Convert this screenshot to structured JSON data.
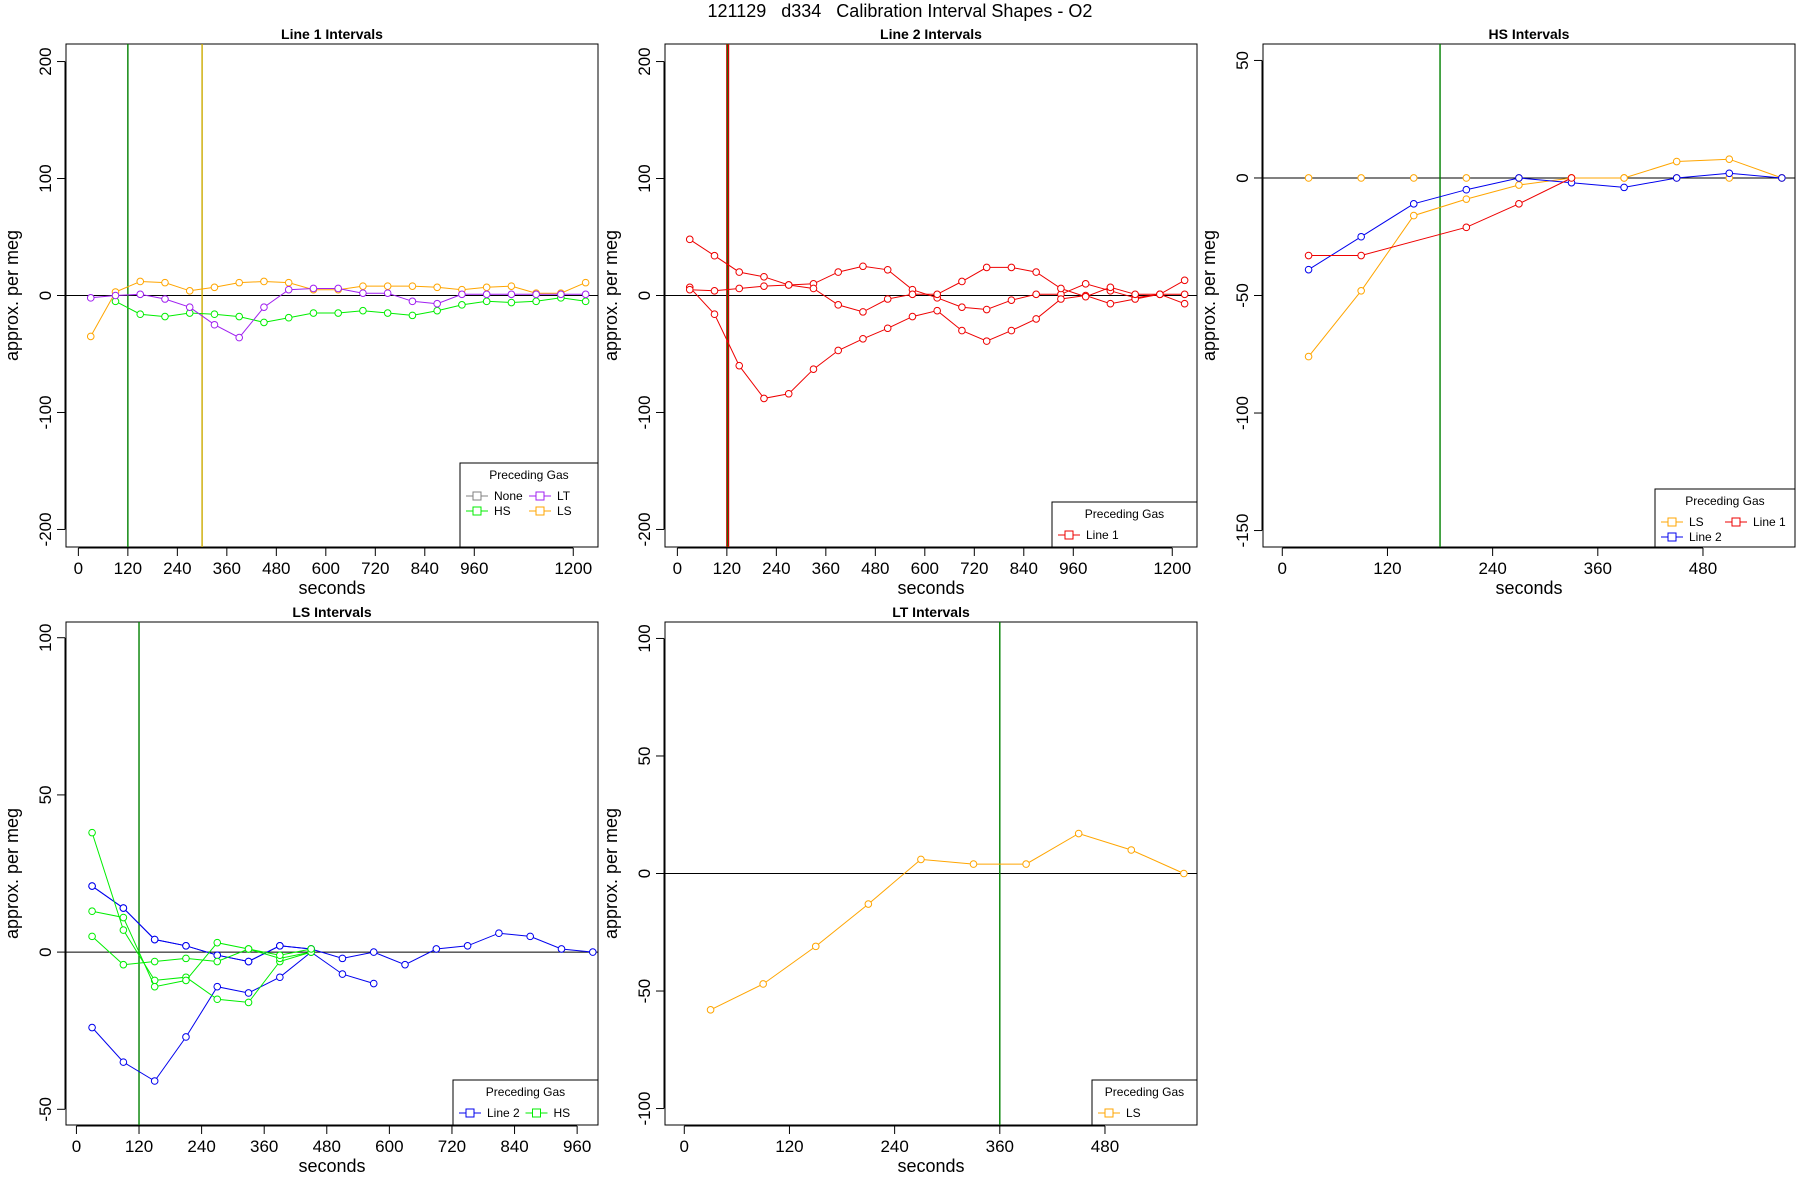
{
  "title": "121129   d334   Calibration Interval Shapes - O2",
  "colors": {
    "None": "#808080",
    "HS": "#00ee00",
    "LT": "#a020f0",
    "LS": "#ffa500",
    "Line 1": "#ee0000",
    "Line 2": "#0000ee",
    "vline_green": "#008000",
    "vline_orange": "#ccaa00",
    "vline_red": "#cc0000"
  },
  "chart_data": [
    {
      "type": "line",
      "title": "Line 1 Intervals",
      "xlabel": "seconds",
      "ylabel": "approx. per meg",
      "xlim": [
        -30,
        1260
      ],
      "ylim": [
        -215,
        215
      ],
      "xticks": [
        0,
        120,
        240,
        360,
        480,
        600,
        720,
        840,
        960,
        1200
      ],
      "yticks": [
        -200,
        -100,
        0,
        100,
        200
      ],
      "vlines": [
        {
          "x": 120,
          "color": "vline_green"
        },
        {
          "x": 300,
          "color": "vline_orange"
        }
      ],
      "legend": {
        "title": "Preceding Gas",
        "position": "bottom-right",
        "rows": [
          [
            "None",
            "LT"
          ],
          [
            "HS",
            "LS"
          ]
        ],
        "ncol": 2
      },
      "series": [
        {
          "name": "LS",
          "x": [
            30,
            90,
            150,
            210,
            270,
            330,
            390,
            450,
            510,
            570,
            630,
            690,
            750,
            810,
            870,
            930,
            990,
            1050,
            1110,
            1170,
            1230
          ],
          "y": [
            -35,
            3,
            12,
            11,
            4,
            7,
            11,
            12,
            11,
            5,
            5,
            8,
            8,
            8,
            7,
            5,
            7,
            8,
            2,
            2,
            11
          ]
        },
        {
          "name": "HS",
          "x": [
            90,
            150,
            210,
            270,
            330,
            390,
            450,
            510,
            570,
            630,
            690,
            750,
            810,
            870,
            930,
            990,
            1050,
            1110,
            1170,
            1230
          ],
          "y": [
            -5,
            -16,
            -18,
            -15,
            -16,
            -18,
            -23,
            -19,
            -15,
            -15,
            -13,
            -15,
            -17,
            -13,
            -8,
            -5,
            -6,
            -5,
            -2,
            -5
          ]
        },
        {
          "name": "LT",
          "x": [
            30,
            90,
            150,
            210,
            270,
            330,
            390,
            450,
            510,
            570,
            630,
            690,
            750,
            810,
            870,
            930,
            990,
            1050,
            1110,
            1170,
            1230
          ],
          "y": [
            -2,
            0,
            1,
            -3,
            -10,
            -25,
            -36,
            -10,
            5,
            6,
            6,
            2,
            2,
            -5,
            -7,
            1,
            1,
            1,
            1,
            1,
            1
          ]
        }
      ]
    },
    {
      "type": "line",
      "title": "Line 2 Intervals",
      "xlabel": "seconds",
      "ylabel": "approx. per meg",
      "xlim": [
        -30,
        1260
      ],
      "ylim": [
        -215,
        215
      ],
      "xticks": [
        0,
        120,
        240,
        360,
        480,
        600,
        720,
        840,
        960,
        1200
      ],
      "yticks": [
        -200,
        -100,
        0,
        100,
        200
      ],
      "vlines": [
        {
          "x": 120,
          "color": "vline_red"
        },
        {
          "x": 122,
          "color": "vline_green"
        },
        {
          "x": 124,
          "color": "vline_red"
        }
      ],
      "legend": {
        "title": "Preceding Gas",
        "position": "bottom-right",
        "rows": [
          [
            "Line 1"
          ]
        ],
        "ncol": 1
      },
      "series": [
        {
          "name": "Line 1",
          "x": [
            30,
            90,
            150,
            210,
            270,
            330,
            390,
            450,
            510,
            570,
            630,
            690,
            750,
            810,
            870,
            930,
            990,
            1050,
            1110,
            1170,
            1230
          ],
          "y": [
            48,
            34,
            20,
            16,
            9,
            10,
            20,
            25,
            22,
            5,
            -2,
            -10,
            -12,
            -4,
            1,
            1,
            10,
            4,
            -2,
            1,
            13
          ]
        },
        {
          "name": "Line 1",
          "x": [
            30,
            90,
            150,
            210,
            270,
            330,
            390,
            450,
            510,
            570,
            630,
            690,
            750,
            810,
            870,
            930,
            990,
            1050,
            1110,
            1170,
            1230
          ],
          "y": [
            7,
            -16,
            -60,
            -88,
            -84,
            -63,
            -47,
            -37,
            -28,
            -18,
            -13,
            -30,
            -39,
            -30,
            -20,
            -3,
            0,
            -7,
            -3,
            1,
            -7
          ]
        },
        {
          "name": "Line 1",
          "x": [
            30,
            90,
            150,
            210,
            270,
            330,
            390,
            450,
            510,
            570,
            630,
            690,
            750,
            810,
            870,
            930,
            990,
            1050,
            1110,
            1170,
            1230
          ],
          "y": [
            5,
            4,
            6,
            8,
            9,
            6,
            -8,
            -14,
            -3,
            1,
            1,
            12,
            24,
            24,
            20,
            6,
            -1,
            7,
            1,
            1,
            1
          ]
        }
      ]
    },
    {
      "type": "line",
      "title": "HS Intervals",
      "xlabel": "seconds",
      "ylabel": "approx. per meg",
      "xlim": [
        -22,
        585
      ],
      "ylim": [
        -157,
        57
      ],
      "xticks": [
        0,
        120,
        240,
        360,
        480
      ],
      "yticks": [
        -150,
        -100,
        -50,
        0,
        50
      ],
      "vlines": [
        {
          "x": 180,
          "color": "vline_green"
        }
      ],
      "legend": {
        "title": "Preceding Gas",
        "position": "bottom-right",
        "rows": [
          [
            "LS",
            "Line 1"
          ],
          [
            "Line 2"
          ]
        ],
        "ncol": 2
      },
      "series": [
        {
          "name": "LS",
          "x": [
            30,
            90,
            150,
            210,
            270,
            330,
            390,
            450,
            510,
            570
          ],
          "y": [
            0,
            0,
            0,
            0,
            0,
            0,
            0,
            0,
            0,
            0
          ],
          "style": "points"
        },
        {
          "name": "LS",
          "x": [
            30,
            90,
            150,
            210,
            270,
            330,
            390,
            450,
            510,
            570
          ],
          "y": [
            -76,
            -48,
            -16,
            -9,
            -3,
            0,
            0,
            7,
            8,
            0
          ]
        },
        {
          "name": "Line 2",
          "x": [
            30,
            90,
            150,
            210,
            270,
            330,
            390,
            450,
            510,
            570
          ],
          "y": [
            -39,
            -25,
            -11,
            -5,
            0,
            -2,
            -4,
            0,
            2,
            0
          ]
        },
        {
          "name": "Line 1",
          "x": [
            30,
            90,
            210,
            270,
            330
          ],
          "y": [
            -33,
            -33,
            -21,
            -11,
            0
          ]
        }
      ]
    },
    {
      "type": "line",
      "title": "LS Intervals",
      "xlabel": "seconds",
      "ylabel": "approx. per meg",
      "xlim": [
        -20,
        1000
      ],
      "ylim": [
        -55,
        105
      ],
      "xticks": [
        0,
        120,
        240,
        360,
        480,
        600,
        720,
        840,
        960
      ],
      "yticks": [
        -50,
        0,
        50,
        100
      ],
      "vlines": [
        {
          "x": 120,
          "color": "vline_green"
        }
      ],
      "legend": {
        "title": "Preceding Gas",
        "position": "bottom-right",
        "rows": [
          [
            "Line 2",
            "HS"
          ]
        ],
        "ncol": 2
      },
      "series": [
        {
          "name": "Line 2",
          "x": [
            30,
            90,
            150,
            210,
            270,
            330,
            390,
            450,
            510,
            570,
            630,
            690,
            750,
            810,
            870,
            930,
            990
          ],
          "y": [
            21,
            14,
            4,
            2,
            -1,
            -3,
            2,
            1,
            -2,
            0,
            -4,
            1,
            2,
            6,
            5,
            1,
            0
          ]
        },
        {
          "name": "Line 2",
          "x": [
            30,
            90,
            150,
            210,
            270,
            330,
            390,
            450,
            510,
            570
          ],
          "y": [
            -24,
            -35,
            -41,
            -27,
            -11,
            -13,
            -8,
            0,
            -7,
            -10
          ]
        },
        {
          "name": "Line 2",
          "x": [
            30,
            90,
            150,
            210,
            270,
            330,
            390,
            450
          ],
          "y": [
            21,
            14,
            4,
            2,
            -1,
            -3,
            2,
            1
          ]
        },
        {
          "name": "HS",
          "x": [
            30,
            90,
            150,
            210,
            270,
            330,
            390,
            450
          ],
          "y": [
            38,
            7,
            -9,
            -8,
            -15,
            -16,
            -3,
            0
          ]
        },
        {
          "name": "HS",
          "x": [
            30,
            90,
            150,
            210,
            270,
            330,
            390,
            450
          ],
          "y": [
            13,
            11,
            -11,
            -9,
            3,
            1,
            -2,
            0
          ]
        },
        {
          "name": "HS",
          "x": [
            30,
            90,
            150,
            210,
            270,
            330,
            390,
            450
          ],
          "y": [
            5,
            -4,
            -3,
            -2,
            -3,
            1,
            -1,
            1
          ]
        }
      ]
    },
    {
      "type": "line",
      "title": "LT Intervals",
      "xlabel": "seconds",
      "ylabel": "approx. per meg",
      "xlim": [
        -22,
        585
      ],
      "ylim": [
        -107,
        107
      ],
      "xticks": [
        0,
        120,
        240,
        360,
        480
      ],
      "yticks": [
        -100,
        -50,
        0,
        50,
        100
      ],
      "vlines": [
        {
          "x": 360,
          "color": "vline_green"
        }
      ],
      "legend": {
        "title": "Preceding Gas",
        "position": "bottom-right",
        "rows": [
          [
            "LS"
          ]
        ],
        "ncol": 1
      },
      "series": [
        {
          "name": "LS",
          "x": [
            30,
            90,
            150,
            210,
            270,
            330,
            390,
            450,
            510,
            570
          ],
          "y": [
            -58,
            -47,
            -31,
            -13,
            6,
            4,
            4,
            17,
            10,
            0
          ]
        }
      ]
    }
  ]
}
